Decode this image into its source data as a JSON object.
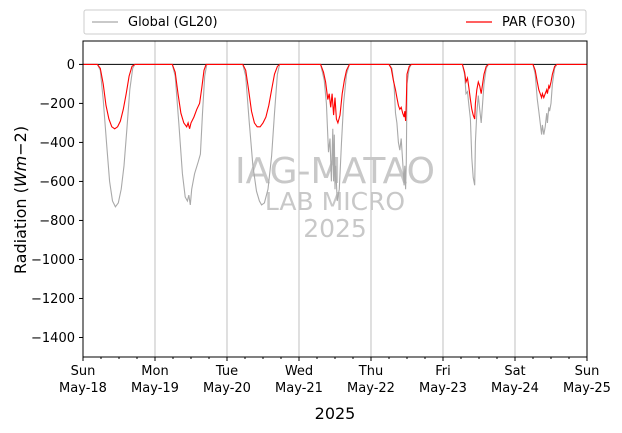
{
  "chart_data": {
    "type": "line",
    "title": "",
    "xlabel": "2025",
    "ylabel": "Radiation (Wm−2)",
    "ylabel_main": "Radiation (",
    "ylabel_unit": "Wm",
    "ylabel_sup": "−2",
    "ylabel_close": ")",
    "ylim": [
      -1500,
      120
    ],
    "xlim": [
      0,
      7
    ],
    "yticks": [
      0,
      -200,
      -400,
      -600,
      -800,
      -1000,
      -1200,
      -1400
    ],
    "ytick_labels": [
      "0",
      "−200",
      "−400",
      "−600",
      "−800",
      "−1000",
      "−1200",
      "−1400"
    ],
    "xtick_labels": [
      {
        "day": "Sun",
        "date": "May-18"
      },
      {
        "day": "Mon",
        "date": "May-19"
      },
      {
        "day": "Tue",
        "date": "May-20"
      },
      {
        "day": "Wed",
        "date": "May-21"
      },
      {
        "day": "Thu",
        "date": "May-22"
      },
      {
        "day": "Fri",
        "date": "May-23"
      },
      {
        "day": "Sat",
        "date": "May-24"
      },
      {
        "day": "Sun",
        "date": "May-25"
      }
    ],
    "grid": "vertical",
    "legend_placement": "top",
    "series": [
      {
        "name": "Global (GL20)",
        "color": "#a9a9a9",
        "points": [
          [
            0.0,
            0
          ],
          [
            0.2,
            0
          ],
          [
            0.24,
            -30
          ],
          [
            0.28,
            -180
          ],
          [
            0.33,
            -420
          ],
          [
            0.37,
            -600
          ],
          [
            0.41,
            -700
          ],
          [
            0.45,
            -730
          ],
          [
            0.49,
            -710
          ],
          [
            0.53,
            -640
          ],
          [
            0.57,
            -520
          ],
          [
            0.61,
            -330
          ],
          [
            0.65,
            -130
          ],
          [
            0.69,
            -20
          ],
          [
            0.72,
            0
          ],
          [
            1.0,
            0
          ],
          [
            1.24,
            0
          ],
          [
            1.28,
            -60
          ],
          [
            1.33,
            -300
          ],
          [
            1.38,
            -560
          ],
          [
            1.42,
            -680
          ],
          [
            1.45,
            -700
          ],
          [
            1.47,
            -670
          ],
          [
            1.49,
            -720
          ],
          [
            1.51,
            -640
          ],
          [
            1.55,
            -560
          ],
          [
            1.6,
            -500
          ],
          [
            1.63,
            -460
          ],
          [
            1.66,
            -250
          ],
          [
            1.69,
            -60
          ],
          [
            1.72,
            0
          ],
          [
            2.0,
            0
          ],
          [
            2.22,
            0
          ],
          [
            2.26,
            -60
          ],
          [
            2.31,
            -300
          ],
          [
            2.36,
            -520
          ],
          [
            2.41,
            -650
          ],
          [
            2.45,
            -700
          ],
          [
            2.48,
            -720
          ],
          [
            2.52,
            -710
          ],
          [
            2.57,
            -640
          ],
          [
            2.62,
            -470
          ],
          [
            2.66,
            -250
          ],
          [
            2.7,
            -50
          ],
          [
            2.73,
            0
          ],
          [
            3.0,
            0
          ],
          [
            3.3,
            0
          ],
          [
            3.35,
            -80
          ],
          [
            3.38,
            -200
          ],
          [
            3.41,
            -450
          ],
          [
            3.43,
            -380
          ],
          [
            3.45,
            -600
          ],
          [
            3.47,
            -330
          ],
          [
            3.48,
            -600
          ],
          [
            3.49,
            -360
          ],
          [
            3.5,
            -640
          ],
          [
            3.51,
            -520
          ],
          [
            3.53,
            -700
          ],
          [
            3.56,
            -640
          ],
          [
            3.59,
            -400
          ],
          [
            3.62,
            -200
          ],
          [
            3.66,
            -50
          ],
          [
            3.7,
            0
          ],
          [
            4.0,
            0
          ],
          [
            4.25,
            0
          ],
          [
            4.29,
            -20
          ],
          [
            4.32,
            -100
          ],
          [
            4.34,
            -250
          ],
          [
            4.36,
            -300
          ],
          [
            4.38,
            -400
          ],
          [
            4.4,
            -440
          ],
          [
            4.42,
            -380
          ],
          [
            4.44,
            -500
          ],
          [
            4.46,
            -620
          ],
          [
            4.47,
            -520
          ],
          [
            4.48,
            -640
          ],
          [
            4.49,
            -500
          ],
          [
            4.5,
            -100
          ],
          [
            4.53,
            -20
          ],
          [
            4.56,
            0
          ],
          [
            5.0,
            0
          ],
          [
            5.27,
            0
          ],
          [
            5.3,
            -50
          ],
          [
            5.32,
            -150
          ],
          [
            5.34,
            -140
          ],
          [
            5.36,
            -210
          ],
          [
            5.38,
            -280
          ],
          [
            5.4,
            -480
          ],
          [
            5.42,
            -580
          ],
          [
            5.44,
            -620
          ],
          [
            5.45,
            -400
          ],
          [
            5.47,
            -250
          ],
          [
            5.49,
            -160
          ],
          [
            5.51,
            -230
          ],
          [
            5.53,
            -300
          ],
          [
            5.55,
            -200
          ],
          [
            5.57,
            -100
          ],
          [
            5.6,
            -20
          ],
          [
            5.63,
            0
          ],
          [
            6.0,
            0
          ],
          [
            6.25,
            0
          ],
          [
            6.28,
            -50
          ],
          [
            6.31,
            -180
          ],
          [
            6.33,
            -240
          ],
          [
            6.35,
            -300
          ],
          [
            6.37,
            -360
          ],
          [
            6.38,
            -310
          ],
          [
            6.4,
            -360
          ],
          [
            6.42,
            -320
          ],
          [
            6.44,
            -250
          ],
          [
            6.45,
            -300
          ],
          [
            6.47,
            -220
          ],
          [
            6.48,
            -240
          ],
          [
            6.5,
            -200
          ],
          [
            6.52,
            -100
          ],
          [
            6.55,
            -20
          ],
          [
            6.58,
            0
          ],
          [
            6.75,
            0
          ],
          [
            7.0,
            0
          ]
        ]
      },
      {
        "name": "PAR (FO30)",
        "color": "#ff0000",
        "points": [
          [
            0.0,
            0
          ],
          [
            0.2,
            0
          ],
          [
            0.24,
            -20
          ],
          [
            0.28,
            -100
          ],
          [
            0.32,
            -210
          ],
          [
            0.36,
            -280
          ],
          [
            0.4,
            -320
          ],
          [
            0.44,
            -330
          ],
          [
            0.48,
            -320
          ],
          [
            0.52,
            -290
          ],
          [
            0.56,
            -230
          ],
          [
            0.6,
            -150
          ],
          [
            0.64,
            -60
          ],
          [
            0.68,
            -10
          ],
          [
            0.72,
            0
          ],
          [
            1.0,
            0
          ],
          [
            1.24,
            0
          ],
          [
            1.28,
            -40
          ],
          [
            1.32,
            -150
          ],
          [
            1.36,
            -250
          ],
          [
            1.4,
            -300
          ],
          [
            1.44,
            -320
          ],
          [
            1.46,
            -300
          ],
          [
            1.48,
            -330
          ],
          [
            1.5,
            -300
          ],
          [
            1.54,
            -270
          ],
          [
            1.58,
            -230
          ],
          [
            1.62,
            -200
          ],
          [
            1.65,
            -120
          ],
          [
            1.68,
            -30
          ],
          [
            1.71,
            0
          ],
          [
            2.0,
            0
          ],
          [
            2.22,
            0
          ],
          [
            2.26,
            -30
          ],
          [
            2.3,
            -130
          ],
          [
            2.34,
            -240
          ],
          [
            2.38,
            -300
          ],
          [
            2.42,
            -320
          ],
          [
            2.46,
            -320
          ],
          [
            2.5,
            -300
          ],
          [
            2.54,
            -270
          ],
          [
            2.58,
            -210
          ],
          [
            2.62,
            -130
          ],
          [
            2.66,
            -50
          ],
          [
            2.7,
            -10
          ],
          [
            2.73,
            0
          ],
          [
            3.0,
            0
          ],
          [
            3.3,
            0
          ],
          [
            3.34,
            -40
          ],
          [
            3.37,
            -90
          ],
          [
            3.4,
            -180
          ],
          [
            3.42,
            -150
          ],
          [
            3.44,
            -220
          ],
          [
            3.46,
            -150
          ],
          [
            3.48,
            -260
          ],
          [
            3.5,
            -170
          ],
          [
            3.52,
            -280
          ],
          [
            3.54,
            -300
          ],
          [
            3.57,
            -260
          ],
          [
            3.6,
            -150
          ],
          [
            3.63,
            -80
          ],
          [
            3.66,
            -30
          ],
          [
            3.7,
            0
          ],
          [
            4.0,
            0
          ],
          [
            4.25,
            0
          ],
          [
            4.28,
            -20
          ],
          [
            4.31,
            -80
          ],
          [
            4.34,
            -130
          ],
          [
            4.36,
            -170
          ],
          [
            4.38,
            -210
          ],
          [
            4.4,
            -230
          ],
          [
            4.42,
            -220
          ],
          [
            4.44,
            -250
          ],
          [
            4.46,
            -270
          ],
          [
            4.47,
            -240
          ],
          [
            4.48,
            -290
          ],
          [
            4.49,
            -200
          ],
          [
            4.5,
            -50
          ],
          [
            4.53,
            -10
          ],
          [
            4.56,
            0
          ],
          [
            5.0,
            0
          ],
          [
            5.27,
            0
          ],
          [
            5.3,
            -40
          ],
          [
            5.32,
            -90
          ],
          [
            5.34,
            -70
          ],
          [
            5.36,
            -120
          ],
          [
            5.38,
            -180
          ],
          [
            5.4,
            -230
          ],
          [
            5.42,
            -260
          ],
          [
            5.44,
            -280
          ],
          [
            5.45,
            -200
          ],
          [
            5.47,
            -130
          ],
          [
            5.49,
            -90
          ],
          [
            5.51,
            -110
          ],
          [
            5.53,
            -150
          ],
          [
            5.55,
            -100
          ],
          [
            5.57,
            -50
          ],
          [
            5.6,
            -10
          ],
          [
            5.63,
            0
          ],
          [
            6.0,
            0
          ],
          [
            6.25,
            0
          ],
          [
            6.28,
            -30
          ],
          [
            6.31,
            -90
          ],
          [
            6.33,
            -130
          ],
          [
            6.35,
            -150
          ],
          [
            6.37,
            -170
          ],
          [
            6.38,
            -150
          ],
          [
            6.4,
            -170
          ],
          [
            6.42,
            -150
          ],
          [
            6.44,
            -130
          ],
          [
            6.45,
            -150
          ],
          [
            6.47,
            -110
          ],
          [
            6.48,
            -120
          ],
          [
            6.5,
            -90
          ],
          [
            6.52,
            -50
          ],
          [
            6.55,
            -10
          ],
          [
            6.58,
            0
          ],
          [
            6.75,
            0
          ],
          [
            7.0,
            0
          ]
        ]
      }
    ],
    "watermark": [
      "IAG-MATAO",
      "LAB MICRO",
      "2025"
    ]
  }
}
